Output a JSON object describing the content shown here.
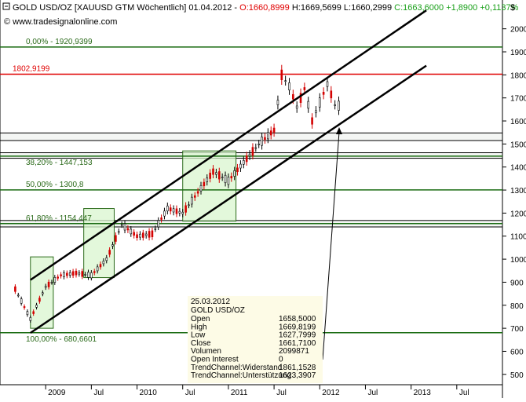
{
  "header": {
    "symbol": "GOLD USD/OZ [XAUUSD GTM  Wöchentlich] 01.04.2012 -",
    "open": "O:1660,8999",
    "high": "H:1669,5699",
    "low": "L:1660,2999",
    "close": "C:1663,6000",
    "change": "+1,8900",
    "change_pct": "+0,1137%",
    "website": "© www.tradesignalonline.com",
    "currency_label": "$"
  },
  "colors": {
    "grid": "#000000",
    "fib_line": "#1a6b12",
    "resistance_line": "#e00000",
    "box_fill": "#d9f5cf",
    "box_stroke": "#2b6a1a",
    "candle": "#000000",
    "candle_down": "#d40000",
    "tooltip_bg": "#fdfbe6"
  },
  "chart_data": {
    "type": "line",
    "title": "GOLD USD/OZ [XAUUSD GTM  Wöchentlich]",
    "xlabel": "",
    "ylabel": "$",
    "ylim": [
      455,
      2125
    ],
    "x_ticks": [
      "2009",
      "Jul",
      "2010",
      "Jul",
      "2011",
      "Jul",
      "2012",
      "Jul",
      "2013",
      "Jul"
    ],
    "y_ticks": [
      500,
      600,
      700,
      800,
      900,
      1000,
      1100,
      1200,
      1300,
      1400,
      1500,
      1600,
      1700,
      1800,
      1900,
      2000
    ],
    "x": [
      "2008-09",
      "2008-11",
      "2009-01",
      "2009-03",
      "2009-05",
      "2009-07",
      "2009-09",
      "2009-11",
      "2010-01",
      "2010-03",
      "2010-05",
      "2010-07",
      "2010-09",
      "2010-11",
      "2011-01",
      "2011-03",
      "2011-05",
      "2011-07",
      "2011-08",
      "2011-09",
      "2011-10",
      "2011-11",
      "2011-12",
      "2012-01",
      "2012-02",
      "2012-03",
      "2012-04"
    ],
    "series": [
      {
        "values": [
          870,
          740,
          880,
          930,
          940,
          930,
          1000,
          1150,
          1100,
          1110,
          1220,
          1200,
          1290,
          1380,
          1340,
          1420,
          1500,
          1560,
          1800,
          1750,
          1660,
          1740,
          1600,
          1680,
          1760,
          1670,
          1662
        ]
      }
    ],
    "levels": [
      {
        "label": "0,00% - 1920,9399",
        "value": 1920.9399,
        "kind": "fibonacci"
      },
      {
        "label": "1802,9199",
        "value": 1802.9199,
        "kind": "resistance"
      },
      {
        "label": "38,20% - 1447,153",
        "value": 1447.153,
        "kind": "fibonacci"
      },
      {
        "label": "50,00% - 1300,8",
        "value": 1300.8,
        "kind": "fibonacci"
      },
      {
        "label": "61,80% - 1154,447",
        "value": 1154.447,
        "kind": "fibonacci"
      },
      {
        "label": "100,00% - 680,6601",
        "value": 680.6601,
        "kind": "fibonacci"
      }
    ],
    "channel": {
      "upper_start": [
        "2008-11",
        910
      ],
      "upper_end": [
        "2013-03",
        2080
      ],
      "lower_start": [
        "2008-11",
        680
      ],
      "lower_end": [
        "2013-03",
        1840
      ]
    },
    "boxes": [
      {
        "x_from": "2008-11",
        "x_to": "2009-02",
        "y_from": 700,
        "y_to": 1010
      },
      {
        "x_from": "2009-06",
        "x_to": "2009-10",
        "y_from": 920,
        "y_to": 1220
      },
      {
        "x_from": "2010-07",
        "x_to": "2011-02",
        "y_from": 1165,
        "y_to": 1470
      }
    ],
    "tooltip": {
      "date": "25.03.2012",
      "name": "GOLD USD/OZ",
      "rows": [
        {
          "label": "Open",
          "value": "1658,5000"
        },
        {
          "label": "High",
          "value": "1669,8199"
        },
        {
          "label": "Low",
          "value": "1627,7999"
        },
        {
          "label": "Close",
          "value": "1661,7100"
        },
        {
          "label": "Volumen",
          "value": "2099871"
        },
        {
          "label": "Open Interest",
          "value": "0"
        },
        {
          "label": "TrendChannel:Widerstand",
          "value": "1861,1528"
        },
        {
          "label": "TrendChannel:Unterstützung",
          "value": "1623,3907"
        }
      ]
    }
  }
}
